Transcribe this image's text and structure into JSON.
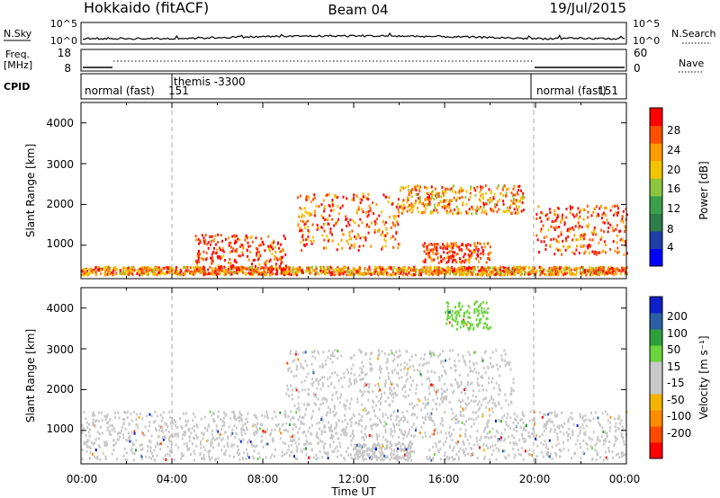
{
  "header": {
    "left": "Hokkaido (fitACF)",
    "center": "Beam 04",
    "right": "19/Jul/2015"
  },
  "strip_nsky": {
    "label": "N.Sky",
    "left_ticks": [
      "10^5",
      "10^0"
    ],
    "right_ticks": [
      "10^5",
      "10^0"
    ],
    "right_label": "N.Search"
  },
  "strip_freq": {
    "label_line1": "Freq.",
    "label_line2": "[MHz]",
    "left_ticks": [
      "18",
      "8"
    ],
    "right_ticks": [
      "60",
      "0"
    ],
    "right_label": "Nave"
  },
  "strip_cpid": {
    "label": "CPID",
    "segments": [
      "normal (fast)",
      "151",
      "themis -3300",
      "normal (fast)",
      "151"
    ]
  },
  "colors": {
    "power_scale": [
      "#0000ff",
      "#1f3fa8",
      "#2e7d4a",
      "#3aa04a",
      "#8cc63f",
      "#f2c500",
      "#ff9a00",
      "#ff5000",
      "#ff0000"
    ],
    "velocity_scale": [
      "#ff0000",
      "#ff4a00",
      "#ff8c00",
      "#f5b400",
      "#c8c8c8",
      "#c8c8c8",
      "#6ad43a",
      "#2e9e3a",
      "#2a5fa5",
      "#1020c8"
    ]
  },
  "chart_data": [
    {
      "type": "heatmap",
      "panel": "power",
      "ylabel": "Slant Range [km]",
      "yticks": [
        "1000",
        "2000",
        "3000",
        "4000"
      ],
      "ylim": [
        180,
        4500
      ],
      "xlim": [
        "00:00",
        "24:00"
      ],
      "colorbar_label": "Power [dB]",
      "colorbar_ticks": [
        "4",
        "8",
        "12",
        "16",
        "20",
        "24",
        "28"
      ],
      "colorbar_range": [
        0,
        30
      ],
      "features": [
        {
          "t_start_h": 0.0,
          "t_end_h": 24.0,
          "range_low_km": 300,
          "range_high_km": 500,
          "power_db": 22
        },
        {
          "t_start_h": 5.0,
          "t_end_h": 9.0,
          "range_low_km": 400,
          "range_high_km": 1300,
          "power_db": 26
        },
        {
          "t_start_h": 9.5,
          "t_end_h": 14.0,
          "range_low_km": 900,
          "range_high_km": 2300,
          "power_db": 24
        },
        {
          "t_start_h": 14.0,
          "t_end_h": 19.5,
          "range_low_km": 1800,
          "range_high_km": 2500,
          "power_db": 22
        },
        {
          "t_start_h": 15.0,
          "t_end_h": 18.0,
          "range_low_km": 600,
          "range_high_km": 1100,
          "power_db": 26
        },
        {
          "t_start_h": 20.0,
          "t_end_h": 24.0,
          "range_low_km": 800,
          "range_high_km": 2000,
          "power_db": 25
        }
      ]
    },
    {
      "type": "heatmap",
      "panel": "velocity",
      "ylabel": "Slant Range [km]",
      "xlabel": "Time UT",
      "yticks": [
        "1000",
        "2000",
        "3000",
        "4000"
      ],
      "ylim": [
        180,
        4500
      ],
      "xticks": [
        "00:00",
        "04:00",
        "08:00",
        "12:00",
        "16:00",
        "20:00",
        "00:00"
      ],
      "xlim": [
        "00:00",
        "24:00"
      ],
      "colorbar_label": "Velocity [m s⁻¹]",
      "colorbar_ticks": [
        "200",
        "100",
        "50",
        "15",
        "-15",
        "-50",
        "-100",
        "-200"
      ],
      "colorbar_range": [
        -250,
        250
      ],
      "features": [
        {
          "t_start_h": 0.0,
          "t_end_h": 24.0,
          "range_low_km": 300,
          "range_high_km": 1500,
          "velocity_ms": 0
        },
        {
          "t_start_h": 9.0,
          "t_end_h": 19.0,
          "range_low_km": 1500,
          "range_high_km": 3000,
          "velocity_ms": 0
        },
        {
          "t_start_h": 12.0,
          "t_end_h": 14.5,
          "range_low_km": 300,
          "range_high_km": 700,
          "velocity_ms": -40
        },
        {
          "t_start_h": 16.0,
          "t_end_h": 18.0,
          "range_low_km": 3500,
          "range_high_km": 4200,
          "velocity_ms": 60
        }
      ]
    }
  ]
}
